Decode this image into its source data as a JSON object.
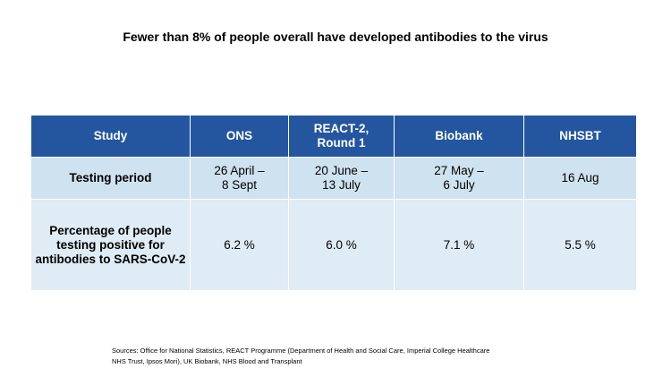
{
  "title": "Fewer than 8% of people overall have developed antibodies to the virus",
  "table": {
    "header": [
      "Study",
      "ONS",
      "REACT-2,\nRound 1",
      "Biobank",
      "NHSBT"
    ],
    "rows": [
      [
        "Testing period",
        "26 April –\n8 Sept",
        "20 June –\n13 July",
        "27 May –\n6 July",
        "16 Aug"
      ],
      [
        "Percentage of people\ntesting positive for\nantibodies to SARS-CoV-2",
        "6.2 %",
        "6.0 %",
        "7.1 %",
        "5.5 %"
      ]
    ]
  },
  "source": [
    "Sources: Office for National Statistics, REACT Programme (Department of Health and Social Care, Imperial College Healthcare",
    "NHS Trust, Ipsos Mori), UK Biobank, NHS Blood and Transplant"
  ]
}
